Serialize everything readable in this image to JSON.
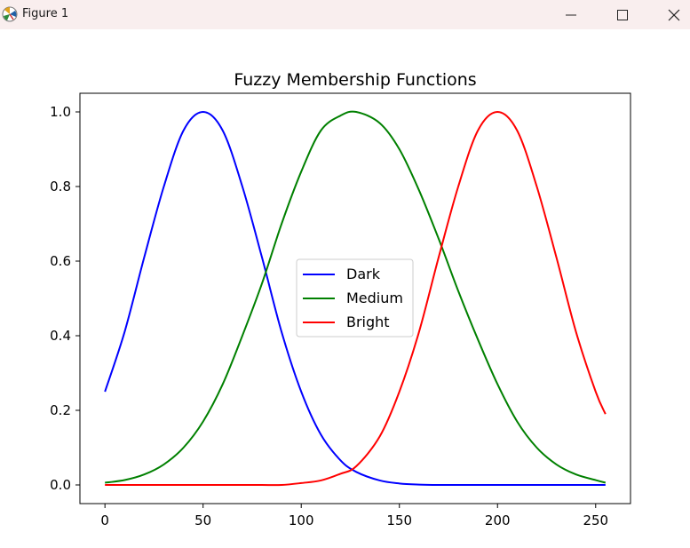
{
  "window": {
    "title": "Figure 1",
    "icons": [
      "matplotlib-icon",
      "minimize-icon",
      "maximize-icon",
      "close-icon"
    ]
  },
  "chart_data": {
    "type": "line",
    "title": "Fuzzy Membership Functions",
    "xlabel": "",
    "ylabel": "",
    "xlim": [
      -12.75,
      267.75
    ],
    "ylim": [
      -0.05,
      1.05
    ],
    "xticks": [
      0,
      50,
      100,
      150,
      200,
      250
    ],
    "yticks": [
      0.0,
      0.2,
      0.4,
      0.6,
      0.8,
      1.0
    ],
    "xtick_labels": [
      "0",
      "50",
      "100",
      "150",
      "200",
      "250"
    ],
    "ytick_labels": [
      "0.0",
      "0.2",
      "0.4",
      "0.6",
      "0.8",
      "1.0"
    ],
    "grid": false,
    "legend": {
      "placement": "center",
      "entries": [
        "Dark",
        "Medium",
        "Bright"
      ]
    },
    "x": [
      0,
      10,
      20,
      30,
      40,
      50,
      60,
      70,
      80,
      90,
      100,
      110,
      120,
      128,
      140,
      150,
      160,
      170,
      180,
      190,
      200,
      210,
      220,
      230,
      240,
      250,
      255
    ],
    "series": [
      {
        "name": "Dark",
        "color": "#0000ff",
        "values": [
          0.25,
          0.41,
          0.61,
          0.8,
          0.95,
          1.0,
          0.95,
          0.8,
          0.61,
          0.41,
          0.25,
          0.135,
          0.066,
          0.035,
          0.012,
          0.004,
          0.001,
          0.0,
          0.0,
          0.0,
          0.0,
          0.0,
          0.0,
          0.0,
          0.0,
          0.0,
          0.0
        ]
      },
      {
        "name": "Medium",
        "color": "#008000",
        "values": [
          0.006,
          0.013,
          0.028,
          0.055,
          0.1,
          0.17,
          0.27,
          0.4,
          0.54,
          0.7,
          0.84,
          0.95,
          0.99,
          1.0,
          0.97,
          0.9,
          0.79,
          0.66,
          0.52,
          0.39,
          0.27,
          0.17,
          0.1,
          0.055,
          0.028,
          0.013,
          0.006
        ]
      },
      {
        "name": "Bright",
        "color": "#ff0000",
        "values": [
          0.0,
          0.0,
          0.0,
          0.0,
          0.0,
          0.0,
          0.0,
          0.0,
          0.0,
          0.0,
          0.005,
          0.012,
          0.03,
          0.05,
          0.13,
          0.25,
          0.41,
          0.61,
          0.8,
          0.95,
          1.0,
          0.95,
          0.8,
          0.61,
          0.41,
          0.25,
          0.19
        ]
      }
    ]
  }
}
